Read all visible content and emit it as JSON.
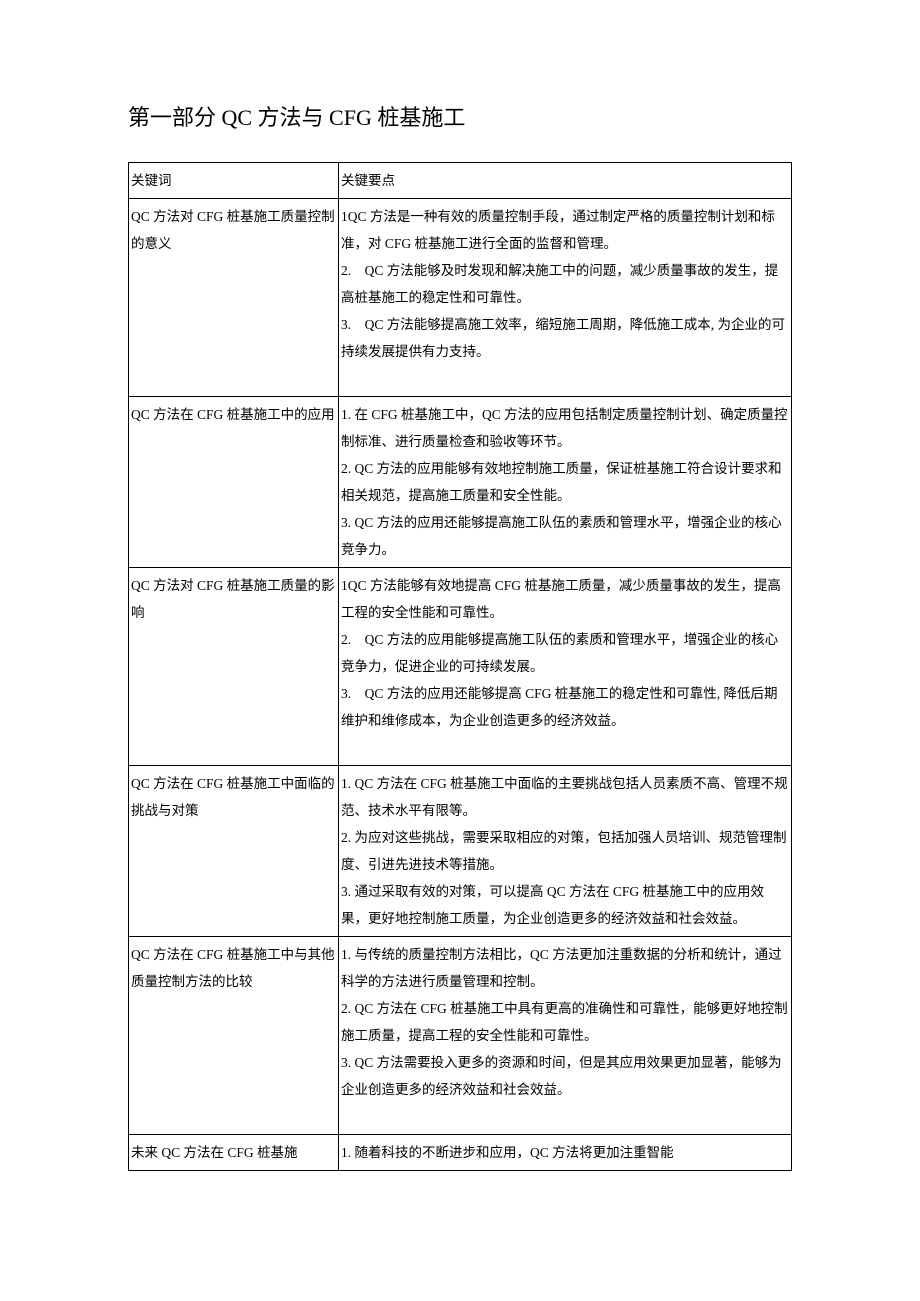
{
  "title": "第一部分 QC 方法与 CFG 桩基施工",
  "table": {
    "header": {
      "left": "关键词",
      "right": "关键要点"
    },
    "rows": [
      {
        "left": "QC 方法对 CFG 桩基施工质量控制的意义",
        "right": "1QC 方法是一种有效的质量控制手段，通过制定严格的质量控制计划和标准，对 CFG 桩基施工进行全面的监督和管理。\n2.　QC 方法能够及时发现和解决施工中的问题，减少质量事故的发生，提高桩基施工的稳定性和可靠性。\n3.　QC 方法能够提高施工效率，缩短施工周期，降低施工成本, 为企业的可持续发展提供有力支持。\n\n"
      },
      {
        "left": "QC 方法在 CFG 桩基施工中的应用",
        "right": "1. 在 CFG 桩基施工中，QC 方法的应用包括制定质量控制计划、确定质量控制标准、进行质量检查和验收等环节。\n2. QC 方法的应用能够有效地控制施工质量，保证桩基施工符合设计要求和相关规范，提高施工质量和安全性能。\n3. QC 方法的应用还能够提高施工队伍的素质和管理水平，增强企业的核心竞争力。"
      },
      {
        "left": "QC 方法对 CFG 桩基施工质量的影响",
        "right": "1QC 方法能够有效地提高 CFG 桩基施工质量，减少质量事故的发生，提高工程的安全性能和可靠性。\n2.　QC 方法的应用能够提高施工队伍的素质和管理水平，增强企业的核心竞争力，促进企业的可持续发展。\n3.　QC 方法的应用还能够提高 CFG 桩基施工的稳定性和可靠性, 降低后期维护和维修成本，为企业创造更多的经济效益。\n\n"
      },
      {
        "left": "QC 方法在 CFG 桩基施工中面临的挑战与对策",
        "right": "1. QC 方法在 CFG 桩基施工中面临的主要挑战包括人员素质不高、管理不规范、技术水平有限等。\n2. 为应对这些挑战，需要采取相应的对策，包括加强人员培训、规范管理制度、引进先进技术等措施。\n3. 通过采取有效的对策，可以提高 QC 方法在 CFG 桩基施工中的应用效果，更好地控制施工质量，为企业创造更多的经济效益和社会效益。"
      },
      {
        "left": "QC 方法在 CFG 桩基施工中与其他质量控制方法的比较",
        "right": "1. 与传统的质量控制方法相比，QC 方法更加注重数据的分析和统计，通过科学的方法进行质量管理和控制。\n2. QC 方法在 CFG 桩基施工中具有更高的准确性和可靠性，能够更好地控制施工质量，提高工程的安全性能和可靠性。\n3. QC 方法需要投入更多的资源和时间，但是其应用效果更加显著，能够为企业创造更多的经济效益和社会效益。\n\n"
      },
      {
        "left": "未来 QC 方法在 CFG 桩基施",
        "right": "1. 随着科技的不断进步和应用，QC 方法将更加注重智能"
      }
    ]
  }
}
